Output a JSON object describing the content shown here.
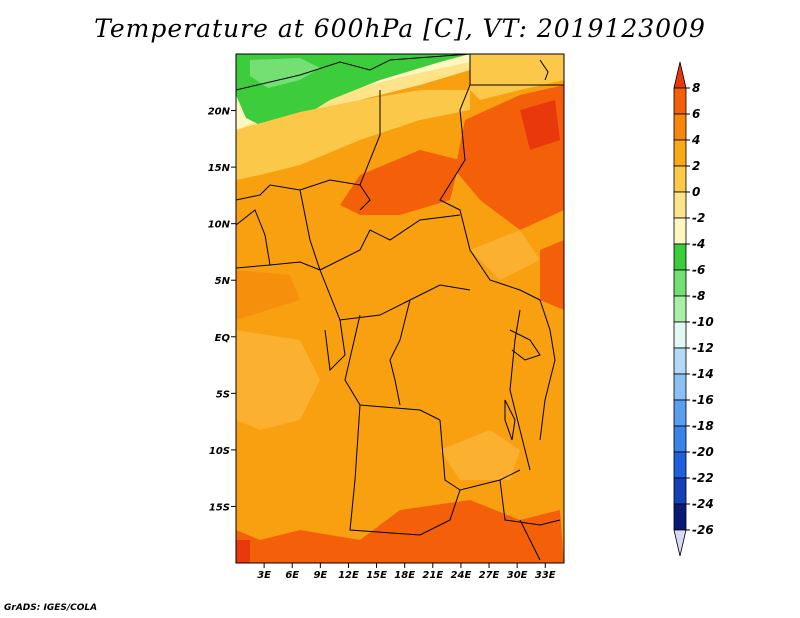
{
  "title": "Temperature at 600hPa [C], VT: 2019123009",
  "footer": "GrADS: IGES/COLA",
  "map": {
    "lon_range": [
      0,
      35
    ],
    "lat_range": [
      -20,
      25
    ],
    "lat_ticks": [
      {
        "value": 20,
        "label": "20N"
      },
      {
        "value": 15,
        "label": "15N"
      },
      {
        "value": 10,
        "label": "10N"
      },
      {
        "value": 5,
        "label": "5N"
      },
      {
        "value": 0,
        "label": "EQ"
      },
      {
        "value": -5,
        "label": "5S"
      },
      {
        "value": -10,
        "label": "10S"
      },
      {
        "value": -15,
        "label": "15S"
      }
    ],
    "lon_ticks": [
      {
        "value": 3,
        "label": "3E"
      },
      {
        "value": 6,
        "label": "6E"
      },
      {
        "value": 9,
        "label": "9E"
      },
      {
        "value": 12,
        "label": "12E"
      },
      {
        "value": 15,
        "label": "15E"
      },
      {
        "value": 18,
        "label": "18E"
      },
      {
        "value": 21,
        "label": "21E"
      },
      {
        "value": 24,
        "label": "24E"
      },
      {
        "value": 27,
        "label": "27E"
      },
      {
        "value": 30,
        "label": "30E"
      },
      {
        "value": 33,
        "label": "33E"
      }
    ]
  },
  "colorbar": {
    "levels": [
      "8",
      "6",
      "4",
      "2",
      "0",
      "-2",
      "-4",
      "-6",
      "-8",
      "-10",
      "-12",
      "-14",
      "-16",
      "-18",
      "-20",
      "-22",
      "-24",
      "-26"
    ],
    "colors": [
      "#e8380c",
      "#f4600a",
      "#f6860c",
      "#f8a818",
      "#fbc84a",
      "#fde38a",
      "#fff7c0",
      "#3ccc3c",
      "#74e074",
      "#a8f0a8",
      "#e2f8f2",
      "#b4d8f8",
      "#8cc0f4",
      "#5a9ef0",
      "#3a82e8",
      "#2060dc",
      "#1440b8",
      "#0a1878",
      "#d8d8f8"
    ]
  },
  "colors": {
    "base_fill": "#f89e0e",
    "land_fill": "#f39a00"
  }
}
